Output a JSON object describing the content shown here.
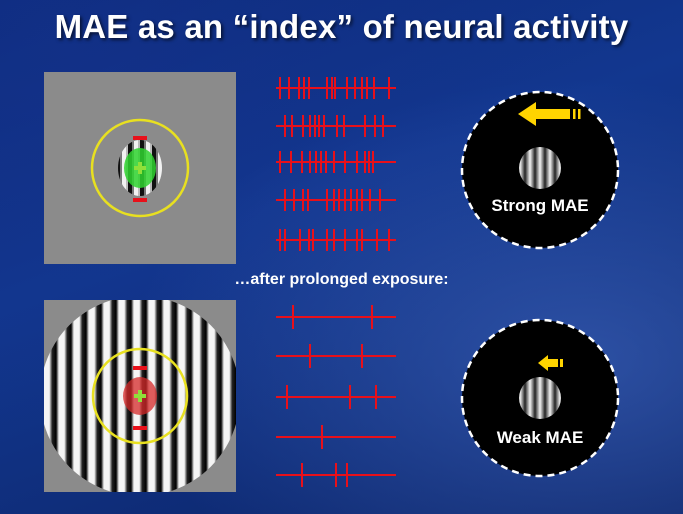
{
  "slide": {
    "title": "MAE as an “index” of neural activity",
    "caption": "…after prolonged exposure:"
  },
  "panels": {
    "top_stimulus": {
      "grating": "small-center-patch",
      "neuron_marker": "green"
    },
    "bottom_stimulus": {
      "grating": "full-field",
      "neuron_marker": "red"
    }
  },
  "aftereffect": {
    "strong": {
      "label": "Strong MAE",
      "arrow": "long-arrow-left-icon"
    },
    "weak": {
      "label": "Weak MAE",
      "arrow": "short-arrow-left-icon"
    }
  },
  "colors": {
    "background": "#12378f",
    "spike": "#e8101a",
    "arrow": "#ffd400",
    "rf_circle": "#e8e020",
    "marker_green": "#2fd42f",
    "marker_red": "#d62a2a",
    "fixation": "#8fe03a"
  }
}
